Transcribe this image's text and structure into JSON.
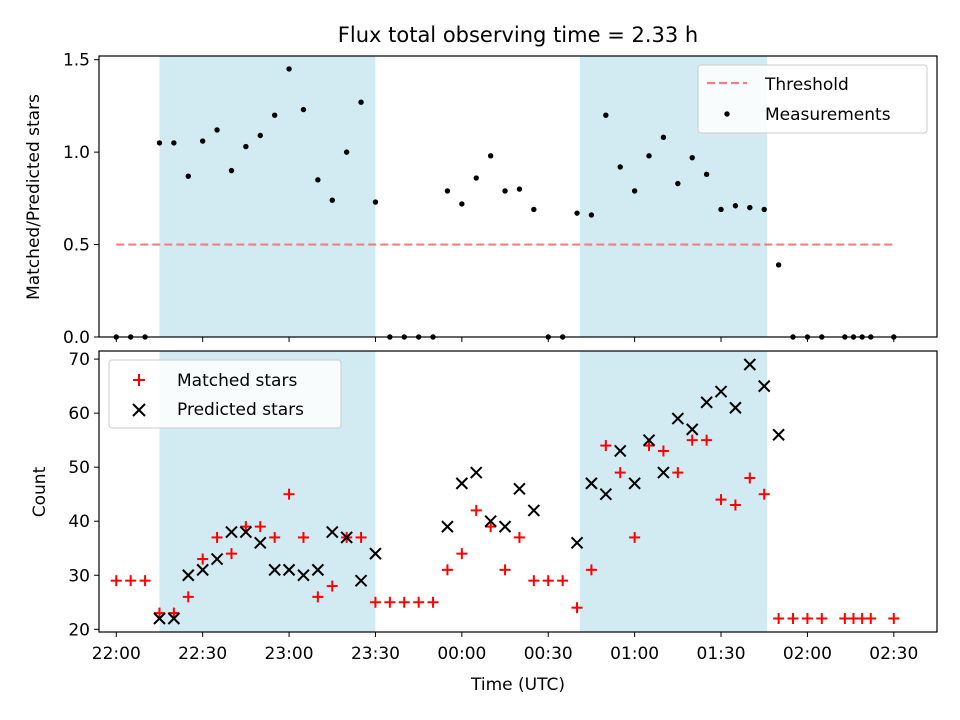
{
  "chart_data": {
    "title": "Flux total observing time = 2.33 h",
    "xlabel": "Time (UTC)",
    "x_tick_labels": [
      "22:00",
      "22:30",
      "23:00",
      "23:30",
      "00:00",
      "00:30",
      "01:00",
      "01:30",
      "02:00",
      "02:30"
    ],
    "x_tick_minutes": [
      0,
      30,
      60,
      90,
      120,
      150,
      180,
      210,
      240,
      270
    ],
    "xlim_minutes": [
      -6,
      285
    ],
    "x_origin_time": "22:00",
    "shaded_intervals_minutes": [
      [
        15,
        90
      ],
      [
        161,
        226
      ]
    ],
    "shade_color": "#add8e6",
    "panels": [
      {
        "type": "scatter",
        "ylabel": "Matched/Predicted stars",
        "ylim": [
          0,
          1.52
        ],
        "y_ticks": [
          0.0,
          0.5,
          1.0,
          1.5
        ],
        "y_tick_labels": [
          "0.0",
          "0.5",
          "1.0",
          "1.5"
        ],
        "legend_position": "top-right",
        "threshold": {
          "name": "Threshold",
          "value": 0.5,
          "x_range": [
            0,
            270
          ],
          "color": "#f08080"
        },
        "series": [
          {
            "name": "Measurements",
            "color": "#000000",
            "points": [
              [
                0,
                0
              ],
              [
                5,
                0
              ],
              [
                10,
                0
              ],
              [
                15,
                1.05
              ],
              [
                20,
                1.05
              ],
              [
                25,
                0.87
              ],
              [
                30,
                1.06
              ],
              [
                35,
                1.12
              ],
              [
                40,
                0.9
              ],
              [
                45,
                1.03
              ],
              [
                50,
                1.09
              ],
              [
                55,
                1.2
              ],
              [
                60,
                1.45
              ],
              [
                65,
                1.23
              ],
              [
                70,
                0.85
              ],
              [
                75,
                0.74
              ],
              [
                80,
                1.0
              ],
              [
                85,
                1.27
              ],
              [
                90,
                0.73
              ],
              [
                95,
                0
              ],
              [
                100,
                0
              ],
              [
                105,
                0
              ],
              [
                110,
                0
              ],
              [
                115,
                0.79
              ],
              [
                120,
                0.72
              ],
              [
                125,
                0.86
              ],
              [
                130,
                0.98
              ],
              [
                135,
                0.79
              ],
              [
                140,
                0.8
              ],
              [
                145,
                0.69
              ],
              [
                150,
                0
              ],
              [
                155,
                0
              ],
              [
                160,
                0.67
              ],
              [
                165,
                0.66
              ],
              [
                170,
                1.2
              ],
              [
                175,
                0.92
              ],
              [
                180,
                0.79
              ],
              [
                185,
                0.98
              ],
              [
                190,
                1.08
              ],
              [
                195,
                0.83
              ],
              [
                200,
                0.97
              ],
              [
                205,
                0.88
              ],
              [
                210,
                0.69
              ],
              [
                215,
                0.71
              ],
              [
                220,
                0.7
              ],
              [
                225,
                0.69
              ],
              [
                230,
                0.39
              ],
              [
                235,
                0
              ],
              [
                240,
                0
              ],
              [
                245,
                0
              ],
              [
                253,
                0
              ],
              [
                256,
                0
              ],
              [
                259,
                0
              ],
              [
                262,
                0
              ],
              [
                270,
                0
              ]
            ]
          }
        ]
      },
      {
        "type": "scatter",
        "ylabel": "Count",
        "ylim": [
          19.5,
          71.5
        ],
        "y_ticks": [
          20,
          30,
          40,
          50,
          60,
          70
        ],
        "y_tick_labels": [
          "20",
          "30",
          "40",
          "50",
          "60",
          "70"
        ],
        "legend_position": "top-left",
        "series": [
          {
            "name": "Matched stars",
            "marker": "plus",
            "color": "#ff0000",
            "points": [
              [
                0,
                29
              ],
              [
                5,
                29
              ],
              [
                10,
                29
              ],
              [
                15,
                23
              ],
              [
                20,
                23
              ],
              [
                25,
                26
              ],
              [
                30,
                33
              ],
              [
                35,
                37
              ],
              [
                40,
                34
              ],
              [
                45,
                39
              ],
              [
                50,
                39
              ],
              [
                55,
                37
              ],
              [
                60,
                45
              ],
              [
                65,
                37
              ],
              [
                70,
                26
              ],
              [
                75,
                28
              ],
              [
                80,
                37
              ],
              [
                85,
                37
              ],
              [
                90,
                25
              ],
              [
                95,
                25
              ],
              [
                100,
                25
              ],
              [
                105,
                25
              ],
              [
                110,
                25
              ],
              [
                115,
                31
              ],
              [
                120,
                34
              ],
              [
                125,
                42
              ],
              [
                130,
                39
              ],
              [
                135,
                31
              ],
              [
                140,
                37
              ],
              [
                145,
                29
              ],
              [
                150,
                29
              ],
              [
                155,
                29
              ],
              [
                160,
                24
              ],
              [
                165,
                31
              ],
              [
                170,
                54
              ],
              [
                175,
                49
              ],
              [
                180,
                37
              ],
              [
                185,
                54
              ],
              [
                190,
                53
              ],
              [
                195,
                49
              ],
              [
                200,
                55
              ],
              [
                205,
                55
              ],
              [
                210,
                44
              ],
              [
                215,
                43
              ],
              [
                220,
                48
              ],
              [
                225,
                45
              ],
              [
                230,
                22
              ],
              [
                235,
                22
              ],
              [
                240,
                22
              ],
              [
                245,
                22
              ],
              [
                253,
                22
              ],
              [
                256,
                22
              ],
              [
                259,
                22
              ],
              [
                262,
                22
              ],
              [
                270,
                22
              ]
            ]
          },
          {
            "name": "Predicted stars",
            "marker": "x",
            "color": "#000000",
            "points": [
              [
                15,
                22
              ],
              [
                20,
                22
              ],
              [
                25,
                30
              ],
              [
                30,
                31
              ],
              [
                35,
                33
              ],
              [
                40,
                38
              ],
              [
                45,
                38
              ],
              [
                50,
                36
              ],
              [
                55,
                31
              ],
              [
                60,
                31
              ],
              [
                65,
                30
              ],
              [
                70,
                31
              ],
              [
                75,
                38
              ],
              [
                80,
                37
              ],
              [
                85,
                29
              ],
              [
                90,
                34
              ],
              [
                115,
                39
              ],
              [
                120,
                47
              ],
              [
                125,
                49
              ],
              [
                130,
                40
              ],
              [
                135,
                39
              ],
              [
                140,
                46
              ],
              [
                145,
                42
              ],
              [
                160,
                36
              ],
              [
                165,
                47
              ],
              [
                170,
                45
              ],
              [
                175,
                53
              ],
              [
                180,
                47
              ],
              [
                185,
                55
              ],
              [
                190,
                49
              ],
              [
                195,
                59
              ],
              [
                200,
                57
              ],
              [
                205,
                62
              ],
              [
                210,
                64
              ],
              [
                215,
                61
              ],
              [
                220,
                69
              ],
              [
                225,
                65
              ],
              [
                230,
                56
              ]
            ]
          }
        ]
      }
    ]
  }
}
